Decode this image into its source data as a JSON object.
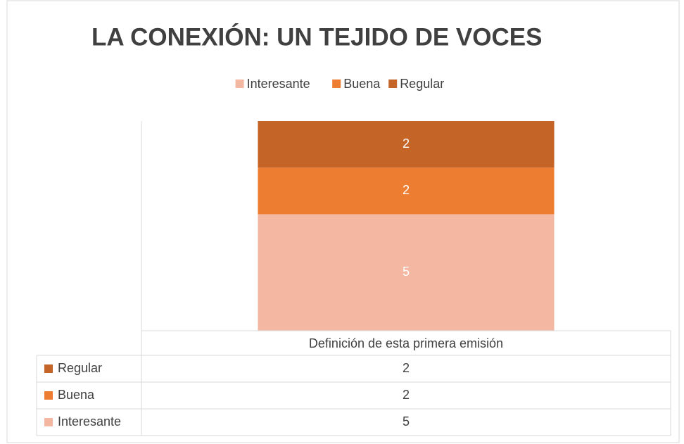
{
  "chart_data": {
    "type": "stacked_bar",
    "title": "LA CONEXIÓN: UN TEJIDO DE VOCES",
    "categories": [
      "Definición de esta primera emisión"
    ],
    "series": [
      {
        "name": "Interesante",
        "color": "#f4b8a2",
        "values": [
          5
        ]
      },
      {
        "name": "Buena",
        "color": "#ed7d31",
        "values": [
          2
        ]
      },
      {
        "name": "Regular",
        "color": "#c46427",
        "values": [
          2
        ]
      }
    ],
    "ylim": [
      0,
      9
    ],
    "legend": "top",
    "data_table": true
  }
}
